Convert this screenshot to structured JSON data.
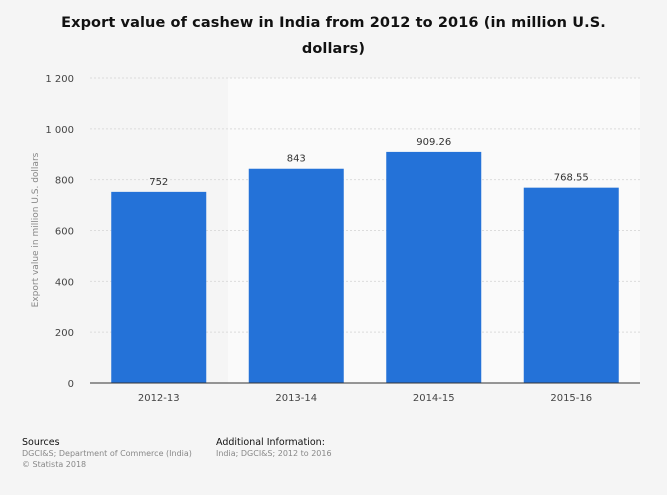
{
  "chart_data": {
    "type": "bar",
    "title": "Export value of cashew in India from 2012 to 2016 (in million U.S. dollars)",
    "ylabel": "Export value in million U.S. dollars",
    "xlabel": "",
    "categories": [
      "2012-13",
      "2013-14",
      "2014-15",
      "2015-16"
    ],
    "values": [
      752,
      843,
      909.26,
      768.55
    ],
    "value_labels": [
      "752",
      "843",
      "909.26",
      "768.55"
    ],
    "ylim": [
      0,
      1200
    ],
    "yticks": [
      0,
      200,
      400,
      600,
      800,
      1000,
      1200
    ],
    "ytick_labels": [
      "0",
      "200",
      "400",
      "600",
      "800",
      "1 000",
      "1 200"
    ],
    "grid": true,
    "bar_color": "#2472d8"
  },
  "footer": {
    "sources_heading": "Sources",
    "sources_line1": "DGCI&S; Department of Commerce (India)",
    "sources_line2": "© Statista 2018",
    "info_heading": "Additional Information:",
    "info_line1": "India; DGCI&S; 2012 to 2016"
  }
}
